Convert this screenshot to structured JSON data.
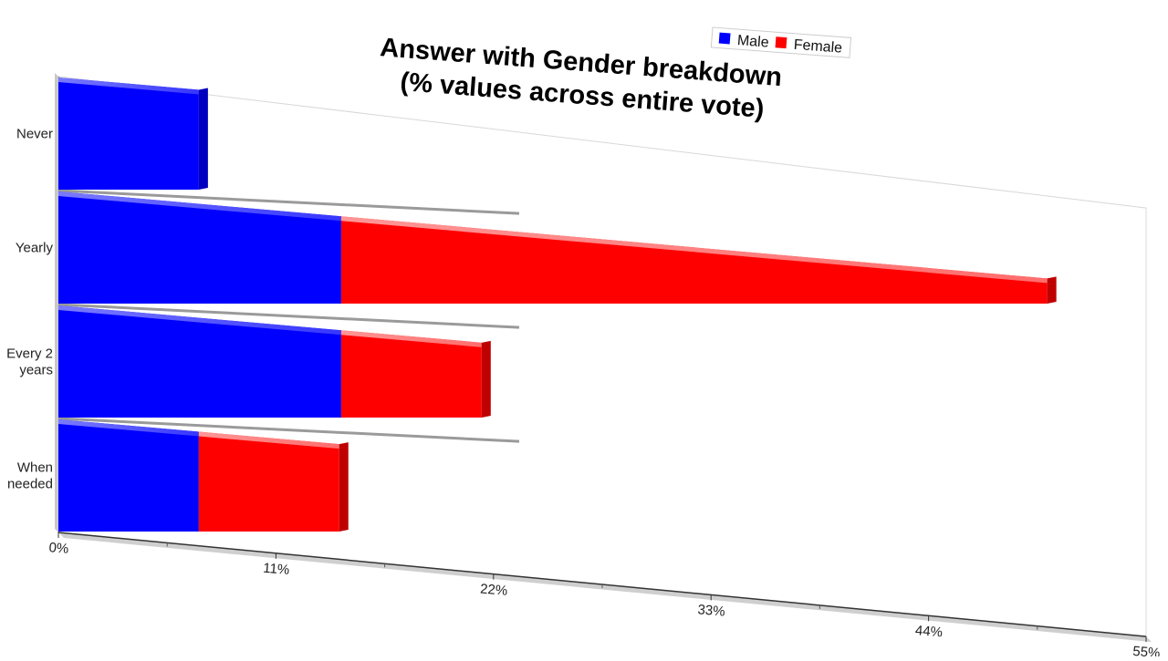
{
  "chart_data": {
    "type": "bar",
    "orientation": "horizontal",
    "stacked": true,
    "title": "Answer with Gender breakdown\n(% values across entire vote)",
    "categories": [
      "Never",
      "Yearly",
      "Every 2 years",
      "When needed"
    ],
    "series": [
      {
        "name": "Male",
        "color": "#0000ff",
        "values": [
          7.1,
          14.3,
          14.3,
          7.1
        ]
      },
      {
        "name": "Female",
        "color": "#ff0000",
        "values": [
          0,
          35.7,
          7.1,
          7.1
        ]
      }
    ],
    "xaxis": {
      "ticks": [
        "0%",
        "11%",
        "22%",
        "33%",
        "44%",
        "55%"
      ],
      "range": [
        0,
        55
      ]
    },
    "legend": {
      "position": "top-right",
      "items": [
        "Male",
        "Female"
      ]
    },
    "grid": false
  }
}
